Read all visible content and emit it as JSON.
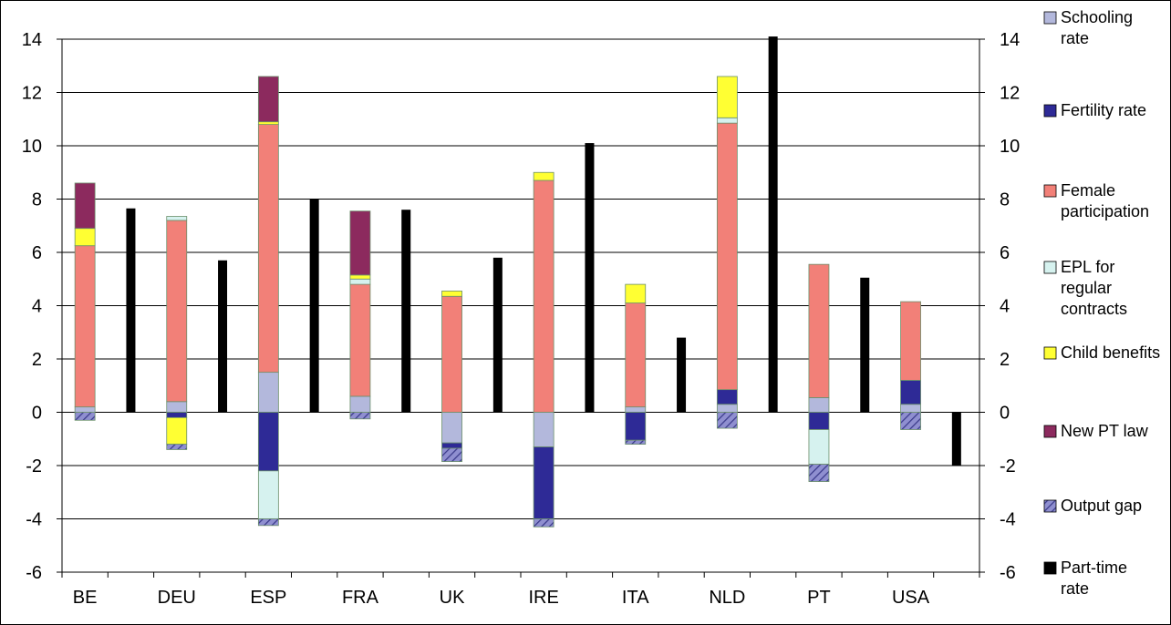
{
  "chart_data": {
    "type": "bar",
    "categories": [
      "BE",
      "DEU",
      "ESP",
      "FRA",
      "UK",
      "IRE",
      "ITA",
      "NLD",
      "PT",
      "USA"
    ],
    "ylim": [
      -6,
      14
    ],
    "yticks": [
      "14",
      "12",
      "10",
      "8",
      "6",
      "4",
      "2",
      "0",
      "-2",
      "-4",
      "-6"
    ],
    "ytick_values": [
      14,
      12,
      10,
      8,
      6,
      4,
      2,
      0,
      -2,
      -4,
      -6
    ],
    "grid": true,
    "legend_position": "right",
    "stacked_series": [
      {
        "name": "Schooling rate",
        "color": "#b3b8dc",
        "values": [
          0.2,
          0.4,
          1.5,
          0.6,
          -1.15,
          -1.3,
          0.2,
          0.3,
          0.55,
          0.3
        ]
      },
      {
        "name": "Fertility rate",
        "color": "#2e2a96",
        "values": [
          0.0,
          -0.2,
          -2.2,
          0.0,
          -0.2,
          -2.7,
          -1.05,
          0.55,
          -0.65,
          0.9
        ]
      },
      {
        "name": "Female participation",
        "color": "#f28078",
        "values": [
          6.05,
          6.8,
          9.3,
          4.2,
          4.35,
          8.7,
          3.9,
          10.0,
          5.0,
          2.95
        ]
      },
      {
        "name": "EPL for regular contracts",
        "color": "#d6f2ef",
        "values": [
          0.0,
          0.15,
          -1.8,
          0.2,
          0.0,
          0.0,
          0.0,
          0.2,
          -1.3,
          0.0
        ]
      },
      {
        "name": "Child benefits",
        "color": "#ffff33",
        "values": [
          0.65,
          -1.0,
          0.1,
          0.15,
          0.2,
          0.3,
          0.7,
          1.55,
          0.0,
          0.0
        ]
      },
      {
        "name": "New PT law",
        "color": "#8c2a5e",
        "values": [
          1.7,
          0.0,
          1.7,
          2.4,
          0.0,
          0.0,
          0.0,
          0.0,
          0.0,
          0.0
        ]
      },
      {
        "name": "Output gap",
        "color": "#8f8fd0",
        "values": [
          -0.3,
          -0.2,
          -0.25,
          -0.25,
          -0.5,
          -0.3,
          -0.15,
          -0.6,
          -0.65,
          -0.65
        ]
      }
    ],
    "part_time_series": {
      "name": "Part-time rate",
      "color": "#000000",
      "values": [
        7.65,
        5.7,
        8.0,
        7.6,
        5.8,
        10.1,
        2.8,
        14.1,
        5.05,
        -2.0
      ]
    },
    "legend": [
      {
        "lines": [
          "Schooling",
          "rate"
        ],
        "color": "#b3b8dc"
      },
      {
        "lines": [
          "Fertility rate"
        ],
        "color": "#2e2a96"
      },
      {
        "lines": [
          "Female",
          "participation"
        ],
        "color": "#f28078"
      },
      {
        "lines": [
          "EPL for",
          "regular",
          "contracts"
        ],
        "color": "#d6f2ef"
      },
      {
        "lines": [
          "Child benefits"
        ],
        "color": "#ffff33"
      },
      {
        "lines": [
          "New PT law"
        ],
        "color": "#8c2a5e"
      },
      {
        "lines": [
          "Output gap"
        ],
        "color": "#8f8fd0",
        "hatched": true
      },
      {
        "lines": [
          "Part-time",
          "rate"
        ],
        "color": "#000000"
      }
    ]
  }
}
